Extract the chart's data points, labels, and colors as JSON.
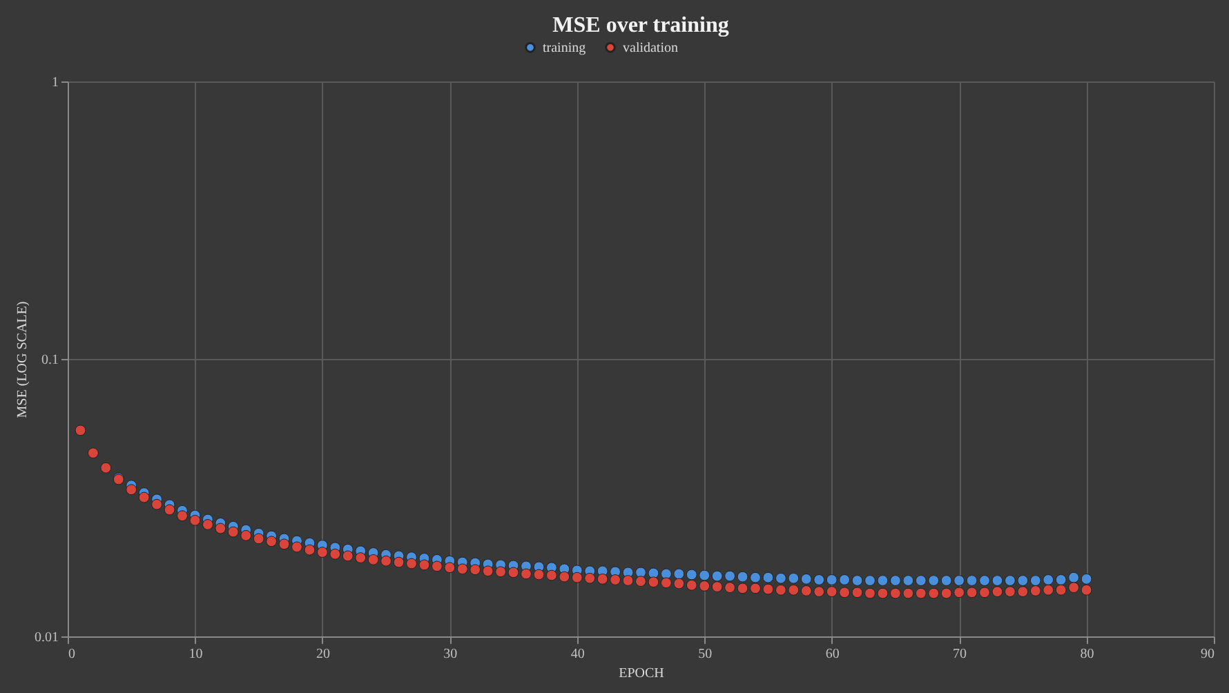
{
  "chart_data": {
    "type": "scatter",
    "title": "MSE over training",
    "xlabel": "EPOCH",
    "ylabel": "MSE (LOG SCALE)",
    "x": [
      1,
      2,
      3,
      4,
      5,
      6,
      7,
      8,
      9,
      10,
      11,
      12,
      13,
      14,
      15,
      16,
      17,
      18,
      19,
      20,
      21,
      22,
      23,
      24,
      25,
      26,
      27,
      28,
      29,
      30,
      31,
      32,
      33,
      34,
      35,
      36,
      37,
      38,
      39,
      40,
      41,
      42,
      43,
      44,
      45,
      46,
      47,
      48,
      49,
      50,
      51,
      52,
      53,
      54,
      55,
      56,
      57,
      58,
      59,
      60,
      61,
      62,
      63,
      64,
      65,
      66,
      67,
      68,
      69,
      70,
      71,
      72,
      73,
      74,
      75,
      76,
      77,
      78,
      79,
      80
    ],
    "series": [
      {
        "name": "training",
        "color": "#4a8fdc",
        "values": [
          null,
          null,
          null,
          0.0372,
          0.035,
          0.0329,
          0.0312,
          0.0298,
          0.0284,
          0.0273,
          0.0264,
          0.0256,
          0.0249,
          0.0242,
          0.0235,
          0.023,
          0.0225,
          0.0221,
          0.0217,
          0.0213,
          0.0209,
          0.0206,
          0.0203,
          0.02,
          0.0197,
          0.0195,
          0.0193,
          0.0191,
          0.0189,
          0.0187,
          0.0185,
          0.0184,
          0.0182,
          0.0181,
          0.018,
          0.0179,
          0.0178,
          0.0177,
          0.0175,
          0.0173,
          0.0172,
          0.0172,
          0.0171,
          0.017,
          0.017,
          0.0169,
          0.0168,
          0.0168,
          0.0167,
          0.0166,
          0.0165,
          0.0165,
          0.0164,
          0.0163,
          0.0163,
          0.0162,
          0.0162,
          0.0161,
          0.016,
          0.016,
          0.016,
          0.0159,
          0.0159,
          0.0159,
          0.0159,
          0.0159,
          0.0159,
          0.0159,
          0.0159,
          0.0159,
          0.0159,
          0.0159,
          0.0159,
          0.0159,
          0.0159,
          0.0159,
          0.016,
          0.016,
          0.0163,
          0.0161
        ]
      },
      {
        "name": "validation",
        "color": "#d9453a",
        "values": [
          0.0553,
          0.0458,
          0.0405,
          0.0368,
          0.0338,
          0.0317,
          0.0299,
          0.0286,
          0.0272,
          0.0262,
          0.0253,
          0.0245,
          0.0238,
          0.0231,
          0.0225,
          0.022,
          0.0215,
          0.021,
          0.0205,
          0.0201,
          0.0198,
          0.0195,
          0.0192,
          0.0189,
          0.0187,
          0.0185,
          0.0183,
          0.0181,
          0.0179,
          0.0177,
          0.0175,
          0.0174,
          0.0172,
          0.0171,
          0.017,
          0.0168,
          0.0167,
          0.0166,
          0.0164,
          0.0163,
          0.0162,
          0.0161,
          0.016,
          0.0159,
          0.0158,
          0.0157,
          0.0156,
          0.0155,
          0.0153,
          0.0152,
          0.0151,
          0.015,
          0.0149,
          0.0149,
          0.0148,
          0.0147,
          0.0147,
          0.0146,
          0.0145,
          0.0145,
          0.0144,
          0.0144,
          0.0143,
          0.0143,
          0.0143,
          0.0143,
          0.0143,
          0.0143,
          0.0143,
          0.0144,
          0.0144,
          0.0144,
          0.0145,
          0.0145,
          0.0145,
          0.0146,
          0.0147,
          0.0147,
          0.015,
          0.0147
        ]
      }
    ],
    "xlim": [
      0,
      90
    ],
    "xticks": [
      0,
      10,
      20,
      30,
      40,
      50,
      60,
      70,
      80,
      90
    ],
    "ylim": [
      0.01,
      1
    ],
    "yticks": [
      0.01,
      0.1,
      1
    ],
    "log": "y",
    "grid": true,
    "legend": "top",
    "marker": "circle"
  }
}
